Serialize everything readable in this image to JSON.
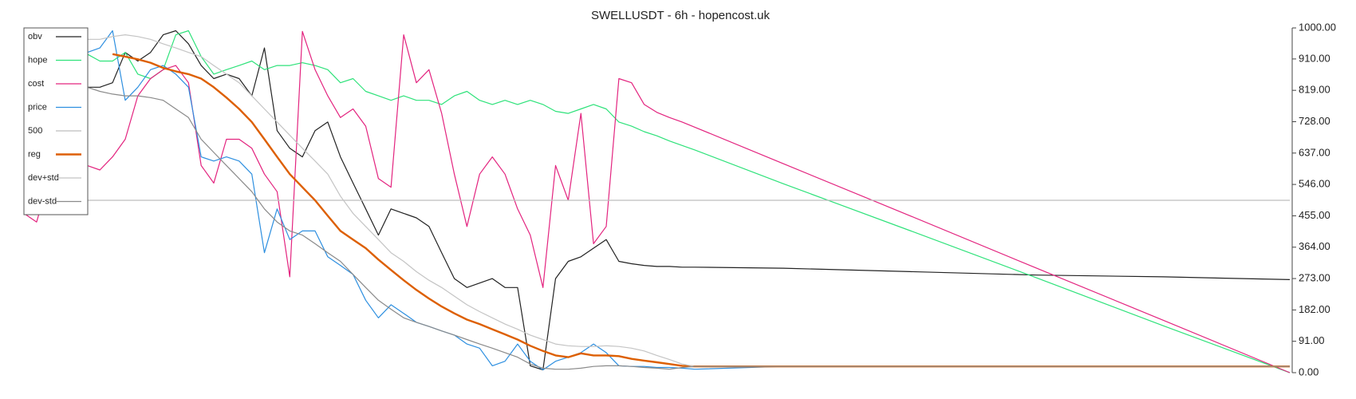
{
  "chart_data": {
    "type": "line",
    "title": "SWELLUSDT - 6h - hopencost.uk",
    "x": [
      0,
      1,
      2,
      3,
      4,
      5,
      6,
      7,
      8,
      9,
      10,
      11,
      12,
      13,
      14,
      15,
      16,
      17,
      18,
      19,
      20,
      21,
      22,
      23,
      24,
      25,
      26,
      27,
      28,
      29,
      30,
      31,
      32,
      33,
      34,
      35,
      36,
      37,
      38,
      39,
      40,
      41,
      42,
      43,
      44,
      45,
      46,
      47,
      48,
      49,
      50,
      51,
      52,
      53,
      60,
      70,
      80,
      90,
      100
    ],
    "xlim": [
      0,
      100
    ],
    "ylim": [
      0,
      1000
    ],
    "yticks": [
      {
        "value": 0,
        "label": "0.00"
      },
      {
        "value": 91,
        "label": "91.00"
      },
      {
        "value": 182,
        "label": "182.00"
      },
      {
        "value": 273,
        "label": "273.00"
      },
      {
        "value": 364,
        "label": "364.00"
      },
      {
        "value": 455,
        "label": "455.00"
      },
      {
        "value": 546,
        "label": "546.00"
      },
      {
        "value": 637,
        "label": "637.00"
      },
      {
        "value": 728,
        "label": "728.00"
      },
      {
        "value": 819,
        "label": "819.00"
      },
      {
        "value": 910,
        "label": "910.00"
      },
      {
        "value": 1000,
        "label": "1000.00"
      }
    ],
    "legend": "upper left",
    "series": [
      {
        "name": "obv",
        "color": "#222222",
        "width": 1.2,
        "values": [
          null,
          null,
          null,
          null,
          null,
          828,
          828,
          841,
          929,
          904,
          929,
          980,
          992,
          954,
          891,
          853,
          866,
          853,
          803,
          942,
          702,
          651,
          626,
          702,
          727,
          626,
          550,
          475,
          399,
          475,
          462,
          449,
          424,
          348,
          273,
          247,
          260,
          273,
          247,
          247,
          20,
          8,
          273,
          323,
          336,
          361,
          386,
          323,
          316,
          311,
          308,
          308,
          306,
          306,
          303,
          293,
          283,
          278,
          270
        ]
      },
      {
        "name": "hope",
        "color": "#2ee27a",
        "width": 1.2,
        "values": [
          null,
          null,
          null,
          null,
          null,
          924,
          904,
          904,
          929,
          866,
          853,
          879,
          980,
          992,
          917,
          866,
          879,
          891,
          904,
          879,
          891,
          891,
          899,
          891,
          879,
          841,
          853,
          816,
          803,
          790,
          803,
          790,
          790,
          778,
          803,
          816,
          790,
          778,
          790,
          778,
          790,
          778,
          758,
          752,
          765,
          778,
          765,
          727,
          715,
          699,
          687,
          672,
          659,
          646,
          548,
          412,
          275,
          136,
          0
        ]
      },
      {
        "name": "cost",
        "color": "#e3247f",
        "width": 1.2,
        "values": [
          462,
          437,
          563,
          513,
          576,
          601,
          588,
          626,
          677,
          803,
          853,
          879,
          891,
          841,
          601,
          550,
          677,
          677,
          651,
          576,
          525,
          278,
          990,
          879,
          803,
          740,
          765,
          715,
          563,
          538,
          980,
          841,
          879,
          752,
          576,
          424,
          576,
          626,
          576,
          475,
          399,
          247,
          601,
          500,
          752,
          374,
          424,
          853,
          841,
          778,
          755,
          740,
          727,
          712,
          606,
          455,
          303,
          152,
          0
        ]
      },
      {
        "name": "price",
        "color": "#2d8fe0",
        "width": 1.2,
        "values": [
          null,
          null,
          null,
          null,
          null,
          929,
          942,
          992,
          790,
          828,
          879,
          891,
          866,
          828,
          626,
          614,
          626,
          614,
          576,
          348,
          475,
          386,
          411,
          411,
          336,
          311,
          285,
          210,
          159,
          197,
          172,
          146,
          134,
          121,
          109,
          83,
          71,
          20,
          33,
          83,
          33,
          8,
          33,
          45,
          58,
          83,
          58,
          20,
          18,
          18,
          15,
          15,
          13,
          10,
          18,
          18,
          18,
          18,
          18
        ]
      },
      {
        "name": "500",
        "color": "#bdbdbd",
        "width": 1.2,
        "values": [
          500,
          500,
          500,
          500,
          500,
          500,
          500,
          500,
          500,
          500,
          500,
          500,
          500,
          500,
          500,
          500,
          500,
          500,
          500,
          500,
          500,
          500,
          500,
          500,
          500,
          500,
          500,
          500,
          500,
          500,
          500,
          500,
          500,
          500,
          500,
          500,
          500,
          500,
          500,
          500,
          500,
          500,
          500,
          500,
          500,
          500,
          500,
          500,
          500,
          500,
          500,
          500,
          500,
          500,
          500,
          500,
          500,
          500,
          500
        ]
      },
      {
        "name": "reg",
        "color": "#dd5f00",
        "width": 2.4,
        "values": [
          null,
          null,
          null,
          null,
          null,
          null,
          null,
          924,
          917,
          909,
          899,
          884,
          874,
          866,
          853,
          828,
          798,
          765,
          727,
          677,
          626,
          576,
          538,
          500,
          455,
          411,
          386,
          361,
          328,
          298,
          268,
          240,
          215,
          192,
          172,
          154,
          141,
          126,
          111,
          96,
          78,
          63,
          50,
          45,
          56,
          50,
          50,
          48,
          40,
          35,
          30,
          25,
          20,
          18,
          18,
          18,
          18,
          18,
          18
        ]
      },
      {
        "name": "dev+std",
        "color": "#c4c4c4",
        "width": 1.2,
        "values": [
          null,
          null,
          null,
          null,
          null,
          967,
          967,
          975,
          980,
          975,
          967,
          954,
          942,
          929,
          917,
          891,
          866,
          841,
          803,
          765,
          727,
          689,
          651,
          614,
          576,
          512,
          462,
          424,
          386,
          348,
          323,
          293,
          268,
          247,
          222,
          197,
          177,
          159,
          141,
          126,
          109,
          96,
          83,
          78,
          76,
          76,
          78,
          76,
          71,
          63,
          50,
          38,
          25,
          18,
          18,
          18,
          18,
          18,
          18
        ]
      },
      {
        "name": "dev-std",
        "color": "#8a8a8a",
        "width": 1.2,
        "values": [
          null,
          null,
          null,
          null,
          null,
          828,
          816,
          808,
          803,
          803,
          798,
          790,
          765,
          740,
          677,
          639,
          601,
          563,
          525,
          475,
          437,
          411,
          399,
          374,
          348,
          323,
          285,
          247,
          210,
          184,
          159,
          146,
          134,
          121,
          109,
          96,
          83,
          71,
          58,
          45,
          25,
          13,
          10,
          10,
          13,
          18,
          20,
          20,
          18,
          15,
          13,
          10,
          15,
          18,
          18,
          18,
          18,
          18,
          18
        ]
      }
    ]
  }
}
